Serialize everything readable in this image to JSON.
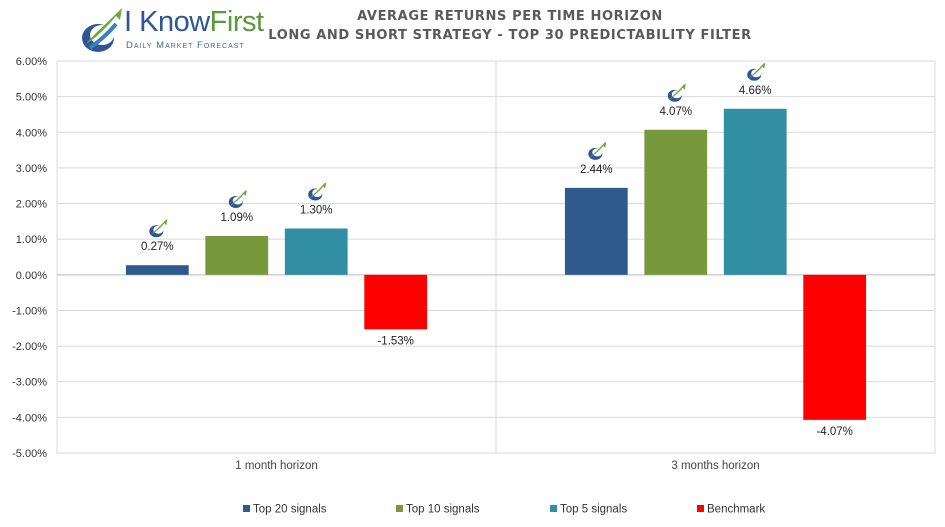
{
  "logo": {
    "brand_a": "I Know",
    "brand_b": "First",
    "tagline": "Daily Market Forecast"
  },
  "chart_data": {
    "type": "bar",
    "title": "AVERAGE RETURNS PER TIME HORIZON",
    "subtitle": "LONG AND SHORT STRATEGY - TOP 30 PREDICTABILITY FILTER",
    "categories": [
      "1 month horizon",
      "3 months horizon"
    ],
    "series": [
      {
        "name": "Top 20 signals",
        "color": "#2f5a8e",
        "values": [
          0.27,
          2.44
        ],
        "labels": [
          "0.27%",
          "2.44%"
        ]
      },
      {
        "name": "Top 10 signals",
        "color": "#77993c",
        "values": [
          1.09,
          4.07
        ],
        "labels": [
          "1.09%",
          "4.07%"
        ]
      },
      {
        "name": "Top 5 signals",
        "color": "#318ea3",
        "values": [
          1.3,
          4.66
        ],
        "labels": [
          "1.30%",
          "4.66%"
        ]
      },
      {
        "name": "Benchmark",
        "color": "#ff0000",
        "values": [
          -1.53,
          -4.07
        ],
        "labels": [
          "-1.53%",
          "-4.07%"
        ]
      }
    ],
    "yticks": [
      "6.00%",
      "5.00%",
      "4.00%",
      "3.00%",
      "2.00%",
      "1.00%",
      "0.00%",
      "-1.00%",
      "-2.00%",
      "-3.00%",
      "-4.00%",
      "-5.00%"
    ],
    "ylim": [
      -5,
      6
    ],
    "grid": true,
    "legend": "bottom",
    "markers": "logo icon above each positive bar"
  }
}
